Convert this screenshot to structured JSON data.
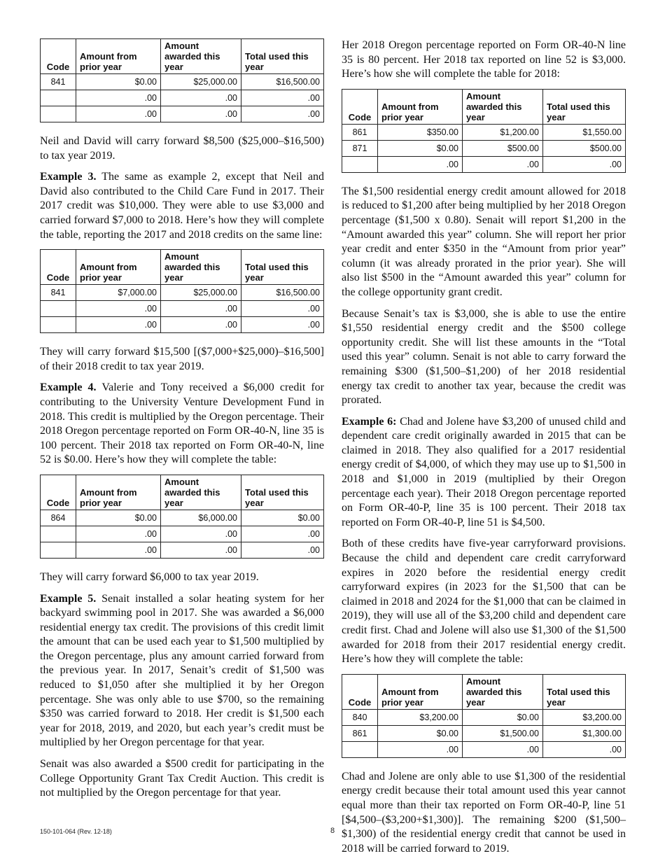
{
  "table_headers": [
    "Code",
    "Amount from prior year",
    "Amount awarded this year",
    "Total used this year"
  ],
  "columns": {
    "left": [
      {
        "type": "table",
        "rows": [
          [
            "841",
            "$0.00",
            "$25,000.00",
            "$16,500.00"
          ],
          [
            "",
            ".00",
            ".00",
            ".00"
          ],
          [
            "",
            ".00",
            ".00",
            ".00"
          ]
        ]
      },
      {
        "type": "p",
        "text": "Neil and David will carry forward $8,500 ($25,000–$16,500) to tax year 2019."
      },
      {
        "type": "p",
        "lead": "Example 3.",
        "text": " The same as example 2, except that Neil and David also contributed to the Child Care Fund in 2017. Their 2017 credit was $10,000. They were able to use $3,000 and carried forward $7,000 to 2018. Here’s how they will complete the table, reporting the 2017 and 2018 credits on the same line:"
      },
      {
        "type": "table",
        "rows": [
          [
            "841",
            "$7,000.00",
            "$25,000.00",
            "$16,500.00"
          ],
          [
            "",
            ".00",
            ".00",
            ".00"
          ],
          [
            "",
            ".00",
            ".00",
            ".00"
          ]
        ]
      },
      {
        "type": "p",
        "text": "They will carry forward $15,500 [($7,000+$25,000)–$16,500] of their 2018 credit to tax year 2019."
      },
      {
        "type": "p",
        "lead": "Example 4.",
        "text": " Valerie and Tony received a $6,000 credit for contributing to the University Venture Development Fund in 2018. This credit is multiplied by the Oregon percentage. Their 2018 Oregon percentage reported on Form OR-40-N, line 35 is 100 percent. Their 2018 tax reported on Form OR-40-N, line 52 is $0.00. Here’s how they will complete the table:"
      },
      {
        "type": "table",
        "rows": [
          [
            "864",
            "$0.00",
            "$6,000.00",
            "$0.00"
          ],
          [
            "",
            ".00",
            ".00",
            ".00"
          ],
          [
            "",
            ".00",
            ".00",
            ".00"
          ]
        ]
      },
      {
        "type": "p",
        "text": "They will carry forward $6,000 to tax year 2019."
      },
      {
        "type": "p",
        "lead": "Example 5.",
        "text": " Senait installed a solar heating system for her backyard swimming pool in 2017. She was awarded a $6,000 residential energy tax credit. The provisions of this credit limit the amount that can be used each year to $1,500 multiplied by the Oregon percentage, plus any amount carried forward from the previous year. In 2017, Senait’s credit of $1,500 was reduced to $1,050 after she multiplied it by her Oregon percentage. She was only able to use $700, so the remaining $350 was carried forward to 2018. Her credit is $1,500 each year for 2018, 2019, and 2020, but each year’s credit must be multiplied by her Oregon percentage for that year."
      },
      {
        "type": "p",
        "text": "Senait was also awarded a $500 credit for participating in the College Opportunity Grant Tax Credit Auction. This credit is not multiplied by the Oregon percentage for that year."
      }
    ],
    "right": [
      {
        "type": "p",
        "text": "Her 2018 Oregon percentage reported on Form OR-40-N line 35 is 80 percent. Her 2018 tax reported on line 52 is $3,000. Here’s how she will complete the table for 2018:"
      },
      {
        "type": "table",
        "rows": [
          [
            "861",
            "$350.00",
            "$1,200.00",
            "$1,550.00"
          ],
          [
            "871",
            "$0.00",
            "$500.00",
            "$500.00"
          ],
          [
            "",
            ".00",
            ".00",
            ".00"
          ]
        ]
      },
      {
        "type": "p",
        "text": "The $1,500 residential energy credit amount allowed for 2018 is reduced to $1,200 after being multiplied by her 2018 Oregon percentage ($1,500 x 0.80). Senait will report $1,200 in the “Amount awarded this year” column. She will report her prior year credit and enter $350 in the “Amount from prior year” column (it was already prorated in the prior year). She will also list $500 in the “Amount awarded this year” column for the college opportunity grant credit."
      },
      {
        "type": "p",
        "text": "Because Senait’s tax is $3,000, she is able to use the entire $1,550 residential energy credit and the $500 college opportunity credit. She will list these amounts in the “Total used this year” column. Senait is not able to carry forward the remaining $300 ($1,500–$1,200) of her 2018 residential energy tax credit to another tax year, because the credit was prorated."
      },
      {
        "type": "p",
        "lead": "Example 6:",
        "text": " Chad and Jolene have $3,200 of unused child and dependent care credit originally awarded in 2015 that can be claimed in 2018. They also qualified for a 2017 residential energy credit of $4,000, of which they may use up to $1,500 in 2018 and $1,000 in 2019 (multiplied by their Oregon percentage each year). Their 2018 Oregon percentage reported on Form OR-40-P, line 35 is 100 percent. Their 2018 tax reported on Form OR-40-P, line 51 is $4,500."
      },
      {
        "type": "p",
        "text": "Both of these credits have five-year carryforward provisions. Because the child and dependent care credit carryforward expires in 2020 before the residential energy credit carryforward expires (in 2023 for the $1,500 that can be claimed in 2018 and 2024 for the $1,000 that can be claimed in 2019), they will use all of the $3,200 child and dependent care credit first. Chad and Jolene will also use $1,300 of the $1,500 awarded for 2018 from their 2017 residential energy credit. Here’s how they will complete the table:"
      },
      {
        "type": "table",
        "rows": [
          [
            "840",
            "$3,200.00",
            "$0.00",
            "$3,200.00"
          ],
          [
            "861",
            "$0.00",
            "$1,500.00",
            "$1,300.00"
          ],
          [
            "",
            ".00",
            ".00",
            ".00"
          ]
        ]
      },
      {
        "type": "p",
        "text": "Chad and Jolene are only able to use $1,300 of the residential energy credit because their total amount used this year cannot equal more than their tax reported on Form OR-40-P, line 51 [$4,500–($3,200+$1,300)]. The remaining $200 ($1,500–$1,300) of the residential energy credit that cannot be used in 2018 will be carried forward to 2019."
      }
    ]
  },
  "footer": {
    "form_id": "150-101-064 (Rev. 12-18)",
    "page_number": "8"
  }
}
